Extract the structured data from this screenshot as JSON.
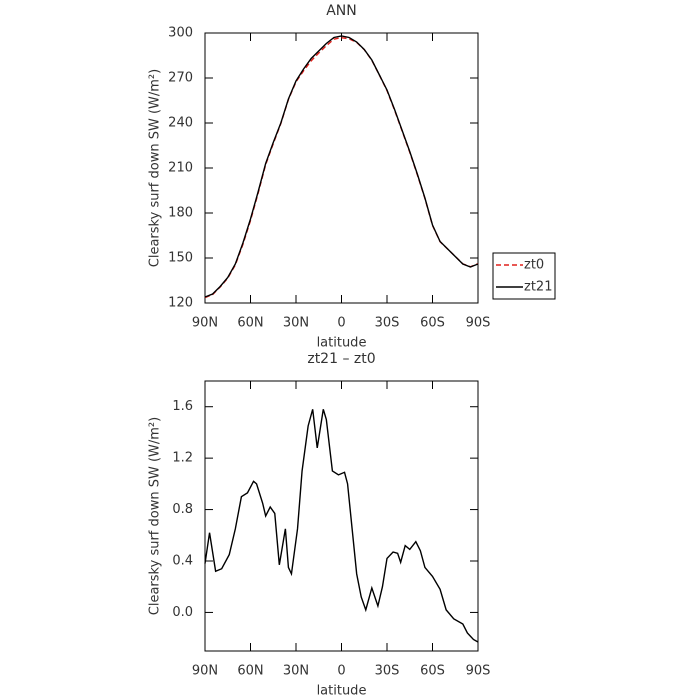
{
  "chart_data": [
    {
      "type": "line",
      "title": "ANN",
      "xlabel": "latitude",
      "ylabel": "Clearsky surf down SW (W/m²)",
      "x": [
        90,
        85,
        80,
        75,
        70,
        65,
        60,
        55,
        50,
        45,
        40,
        35,
        30,
        25,
        20,
        15,
        10,
        5,
        0,
        -5,
        -10,
        -15,
        -20,
        -25,
        -30,
        -35,
        -40,
        -45,
        -50,
        -55,
        -60,
        -65,
        -70,
        -75,
        -80,
        -85,
        -90
      ],
      "series": [
        {
          "name": "zt0",
          "color": "#e0201b",
          "linestyle": "dashed",
          "values": [
            123.62,
            125.6,
            130.67,
            136.58,
            145.4,
            159.1,
            175,
            193.05,
            212.25,
            226.2,
            239.6,
            255.65,
            267.4,
            274.8,
            281.45,
            286.65,
            291.5,
            295.9,
            296.92,
            296.1,
            293.75,
            288.95,
            281.81,
            271.9,
            261.58,
            248.53,
            234.55,
            220.5,
            205.48,
            189.65,
            171.73,
            160.82,
            156,
            151.06,
            146.1,
            144.19,
            146.23
          ]
        },
        {
          "name": "zt21",
          "color": "#000000",
          "linestyle": "solid",
          "values": [
            124,
            126,
            131,
            137,
            146,
            160,
            176,
            194,
            213,
            227,
            240,
            256,
            268,
            276,
            283,
            288,
            293,
            297,
            298,
            297,
            294,
            289,
            282,
            272,
            262,
            249,
            235,
            221,
            206,
            190,
            172,
            161,
            156,
            151,
            146,
            144,
            146
          ]
        }
      ],
      "xlim": [
        90,
        -90
      ],
      "xticks": [
        {
          "value": 90,
          "label": "90N"
        },
        {
          "value": 60,
          "label": "60N"
        },
        {
          "value": 30,
          "label": "30N"
        },
        0,
        {
          "value": -30,
          "label": "30S"
        },
        {
          "value": -60,
          "label": "60S"
        },
        {
          "value": -90,
          "label": "90S"
        }
      ],
      "ylim": [
        120,
        300
      ],
      "yticks": [
        120,
        150,
        180,
        210,
        240,
        270,
        300
      ],
      "legend": "outside-right"
    },
    {
      "type": "line",
      "title": "zt21 – zt0",
      "xlabel": "latitude",
      "ylabel": "Clearsky surf down SW (W/m²)",
      "x": [
        90,
        87,
        83,
        79,
        74,
        70,
        66,
        62,
        58,
        56,
        52,
        50,
        47,
        44,
        41,
        37,
        35,
        33,
        29,
        26,
        22,
        19,
        16,
        12,
        10,
        6,
        2,
        -2,
        -4,
        -7,
        -10,
        -13,
        -16,
        -20,
        -24,
        -27,
        -30,
        -34,
        -37,
        -39,
        -42,
        -45,
        -49,
        -52,
        -55,
        -60,
        -65,
        -69,
        -74,
        -80,
        -83,
        -87,
        -90
      ],
      "series": [
        {
          "color": "#000000",
          "linestyle": "solid",
          "values": [
            0.38,
            0.62,
            0.32,
            0.34,
            0.45,
            0.65,
            0.9,
            0.93,
            1.02,
            1.0,
            0.85,
            0.75,
            0.82,
            0.77,
            0.37,
            0.65,
            0.35,
            0.3,
            0.65,
            1.1,
            1.45,
            1.58,
            1.28,
            1.58,
            1.5,
            1.1,
            1.07,
            1.09,
            1.0,
            0.65,
            0.3,
            0.12,
            0.02,
            0.19,
            0.05,
            0.2,
            0.42,
            0.47,
            0.46,
            0.39,
            0.52,
            0.49,
            0.55,
            0.48,
            0.35,
            0.28,
            0.18,
            0.02,
            -0.05,
            -0.09,
            -0.16,
            -0.21,
            -0.23
          ]
        }
      ],
      "xlim": [
        90,
        -90
      ],
      "xticks": [
        {
          "value": 90,
          "label": "90N"
        },
        {
          "value": 60,
          "label": "60N"
        },
        {
          "value": 30,
          "label": "30N"
        },
        0,
        {
          "value": -30,
          "label": "30S"
        },
        {
          "value": -60,
          "label": "60S"
        },
        {
          "value": -90,
          "label": "90S"
        }
      ],
      "ylim": [
        -0.3,
        1.8
      ],
      "yticks": [
        {
          "value": 0,
          "label": "0.0"
        },
        0.4,
        0.8,
        1.2,
        1.6
      ]
    }
  ]
}
